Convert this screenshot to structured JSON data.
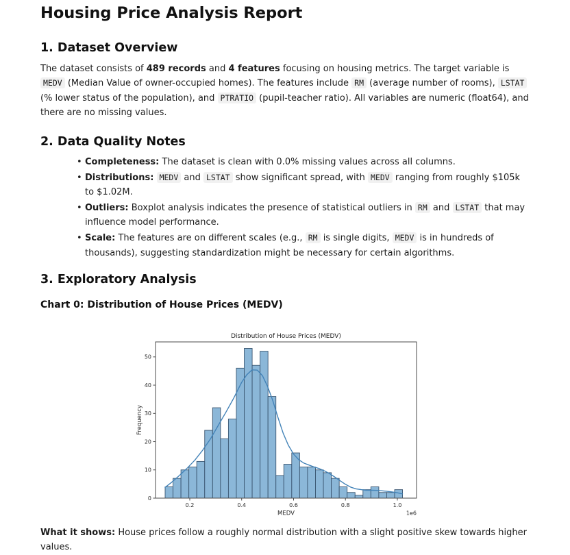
{
  "page": {
    "title": "Housing Price Analysis Report"
  },
  "sections": {
    "overview": {
      "heading": "1. Dataset Overview",
      "paragraph_runs": [
        {
          "t": "The dataset consists of ",
          "s": "plain"
        },
        {
          "t": "489 records",
          "s": "bold"
        },
        {
          "t": " and ",
          "s": "plain"
        },
        {
          "t": "4 features",
          "s": "bold"
        },
        {
          "t": " focusing on housing metrics. The target variable is ",
          "s": "plain"
        },
        {
          "t": "MEDV",
          "s": "code"
        },
        {
          "t": " (Median Value of owner-occupied homes). The features include ",
          "s": "plain"
        },
        {
          "t": "RM",
          "s": "code"
        },
        {
          "t": " (average number of rooms), ",
          "s": "plain"
        },
        {
          "t": "LSTAT",
          "s": "code"
        },
        {
          "t": " (% lower status of the population), and ",
          "s": "plain"
        },
        {
          "t": "PTRATIO",
          "s": "code"
        },
        {
          "t": " (pupil-teacher ratio). All variables are numeric (float64), and there are no missing values.",
          "s": "plain"
        }
      ]
    },
    "quality": {
      "heading": "2. Data Quality Notes",
      "bullets": [
        [
          {
            "t": "Completeness:",
            "s": "bold"
          },
          {
            "t": " The dataset is clean with 0.0% missing values across all columns.",
            "s": "plain"
          }
        ],
        [
          {
            "t": "Distributions:",
            "s": "bold"
          },
          {
            "t": " ",
            "s": "plain"
          },
          {
            "t": "MEDV",
            "s": "code"
          },
          {
            "t": " and ",
            "s": "plain"
          },
          {
            "t": "LSTAT",
            "s": "code"
          },
          {
            "t": " show significant spread, with ",
            "s": "plain"
          },
          {
            "t": "MEDV",
            "s": "code"
          },
          {
            "t": " ranging from roughly $105k to $1.02M.",
            "s": "plain"
          }
        ],
        [
          {
            "t": "Outliers:",
            "s": "bold"
          },
          {
            "t": " Boxplot analysis indicates the presence of statistical outliers in ",
            "s": "plain"
          },
          {
            "t": "RM",
            "s": "code"
          },
          {
            "t": " and ",
            "s": "plain"
          },
          {
            "t": "LSTAT",
            "s": "code"
          },
          {
            "t": " that may influence model performance.",
            "s": "plain"
          }
        ],
        [
          {
            "t": "Scale:",
            "s": "bold"
          },
          {
            "t": " The features are on different scales (e.g., ",
            "s": "plain"
          },
          {
            "t": "RM",
            "s": "code"
          },
          {
            "t": " is single digits, ",
            "s": "plain"
          },
          {
            "t": "MEDV",
            "s": "code"
          },
          {
            "t": " is in hundreds of thousands), suggesting standardization might be necessary for certain algorithms.",
            "s": "plain"
          }
        ]
      ]
    },
    "exploratory": {
      "heading": "3. Exploratory Analysis",
      "chart_caption": "Chart 0: Distribution of House Prices (MEDV)",
      "what_it_shows_runs": [
        {
          "t": "What it shows:",
          "s": "bold"
        },
        {
          "t": " House prices follow a roughly normal distribution with a slight positive skew towards higher values.",
          "s": "plain"
        }
      ]
    }
  },
  "chart_data": {
    "type": "bar",
    "subtype": "histogram-with-kde",
    "title": "Distribution of House Prices (MEDV)",
    "xlabel": "MEDV",
    "ylabel": "Frequency",
    "x_offset_label": "1e6",
    "bin_start": 105000,
    "bin_width": 30500,
    "counts": [
      4,
      7,
      10,
      11,
      13,
      24,
      32,
      21,
      28,
      46,
      53,
      47,
      52,
      36,
      8,
      12,
      16,
      11,
      11,
      10,
      9,
      7,
      4,
      2,
      1,
      3,
      4,
      2,
      2,
      3
    ],
    "total_records": 489,
    "xlim": [
      68000,
      1074000
    ],
    "ylim": [
      0,
      55.3
    ],
    "xticks": [
      0.2,
      0.4,
      0.6,
      0.8,
      1.0
    ],
    "yticks": [
      0,
      10,
      20,
      30,
      40,
      50
    ],
    "grid": false,
    "legend": "none",
    "kde": [
      [
        0.105,
        3.8
      ],
      [
        0.13,
        5.6
      ],
      [
        0.16,
        8.0
      ],
      [
        0.19,
        10.6
      ],
      [
        0.22,
        13.5
      ],
      [
        0.25,
        17.0
      ],
      [
        0.28,
        21.0
      ],
      [
        0.31,
        25.8
      ],
      [
        0.34,
        30.5
      ],
      [
        0.37,
        35.5
      ],
      [
        0.4,
        41.0
      ],
      [
        0.42,
        43.7
      ],
      [
        0.44,
        45.4
      ],
      [
        0.46,
        45.3
      ],
      [
        0.48,
        43.4
      ],
      [
        0.5,
        39.5
      ],
      [
        0.52,
        34.5
      ],
      [
        0.54,
        28.5
      ],
      [
        0.56,
        23.0
      ],
      [
        0.58,
        18.7
      ],
      [
        0.6,
        15.6
      ],
      [
        0.62,
        13.6
      ],
      [
        0.64,
        12.4
      ],
      [
        0.66,
        11.7
      ],
      [
        0.68,
        11.0
      ],
      [
        0.7,
        10.4
      ],
      [
        0.72,
        9.6
      ],
      [
        0.74,
        8.6
      ],
      [
        0.76,
        7.4
      ],
      [
        0.78,
        6.1
      ],
      [
        0.8,
        4.9
      ],
      [
        0.82,
        3.9
      ],
      [
        0.84,
        3.3
      ],
      [
        0.86,
        3.0
      ],
      [
        0.88,
        2.8
      ],
      [
        0.9,
        2.8
      ],
      [
        0.92,
        2.75
      ],
      [
        0.94,
        2.6
      ],
      [
        0.96,
        2.4
      ],
      [
        0.98,
        2.2
      ],
      [
        1.0,
        1.9
      ],
      [
        1.02,
        1.5
      ]
    ],
    "colors": {
      "bar_fill": "#8bb7d8",
      "bar_edge": "#3a5570",
      "line": "#4383b8",
      "frame": "#4a4a4a",
      "tick_text": "#262626",
      "title_text": "#1a1a1a"
    }
  }
}
